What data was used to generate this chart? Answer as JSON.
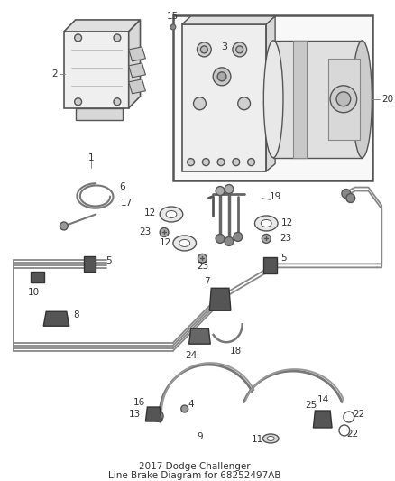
{
  "bg_color": "#ffffff",
  "fig_width": 4.38,
  "fig_height": 5.33,
  "dpi": 100,
  "lc": "#555555",
  "lc_dark": "#333333",
  "lc_light": "#999999"
}
